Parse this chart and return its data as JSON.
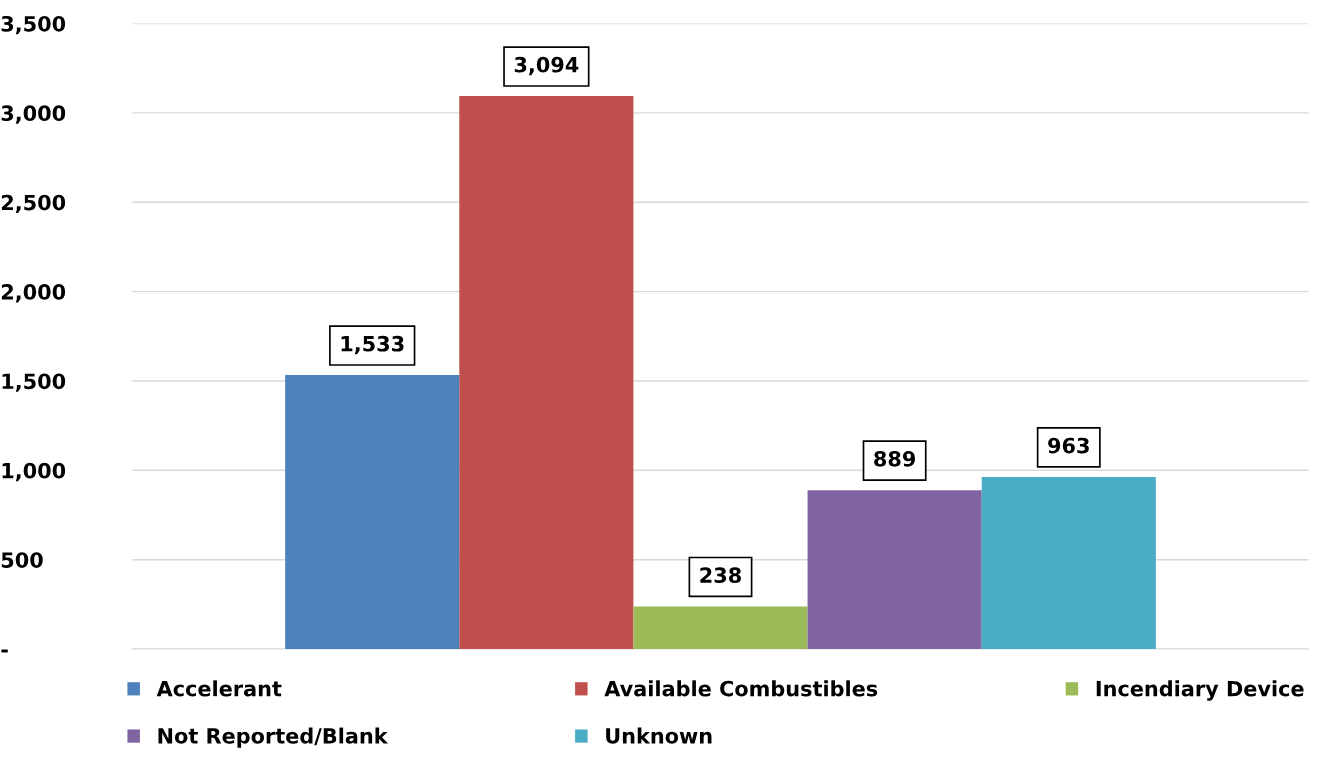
{
  "chart_data": {
    "type": "bar",
    "categories": [
      null
    ],
    "series": [
      {
        "name": "Accelerant",
        "color": "#4f81bd",
        "values": [
          1533
        ],
        "value_labels": [
          "1,533"
        ]
      },
      {
        "name": "Available Combustibles",
        "color": "#c0504d",
        "values": [
          3094
        ],
        "value_labels": [
          "3,094"
        ]
      },
      {
        "name": "Incendiary Device",
        "color": "#9bbb59",
        "values": [
          238
        ],
        "value_labels": [
          "238"
        ]
      },
      {
        "name": "Not Reported/Blank",
        "color": "#8064a2",
        "values": [
          889
        ],
        "value_labels": [
          "889"
        ]
      },
      {
        "name": "Unknown",
        "color": "#4bacc6",
        "values": [
          963
        ],
        "value_labels": [
          "963"
        ]
      }
    ],
    "ylim": [
      0,
      3500
    ],
    "yticks": [
      {
        "value": 0,
        "label": "-"
      },
      500,
      {
        "value": 1000,
        "label": "1,000"
      },
      {
        "value": 1500,
        "label": "1,500"
      },
      {
        "value": 2000,
        "label": "2,000"
      },
      {
        "value": 2500,
        "label": "2,500"
      },
      {
        "value": 3000,
        "label": "3,000"
      },
      {
        "value": 3500,
        "label": "3,500"
      }
    ],
    "grid": "y",
    "legend": "bottom"
  }
}
